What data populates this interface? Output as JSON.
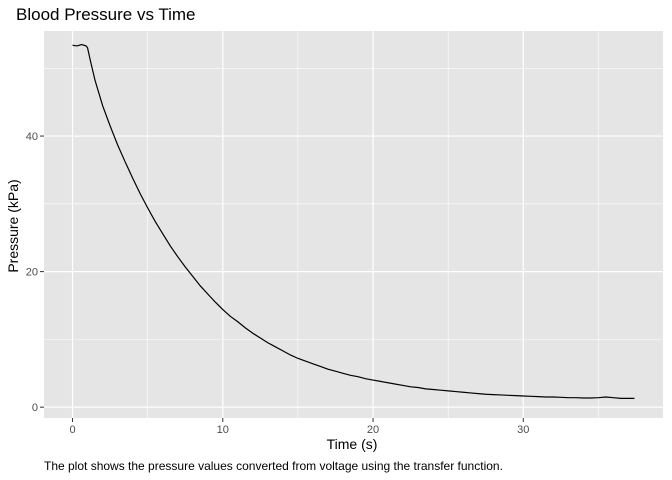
{
  "chart_data": {
    "type": "line",
    "title": "Blood Pressure vs Time",
    "xlabel": "Time (s)",
    "ylabel": "Pressure (kPa)",
    "caption": "The plot shows the pressure values converted from voltage using the transfer function.",
    "xlim": [
      -1.9,
      39.3
    ],
    "ylim": [
      -1.6,
      55.5
    ],
    "x_ticks": [
      0,
      10,
      20,
      30
    ],
    "x_tick_labels": [
      "0",
      "10",
      "20",
      "30"
    ],
    "y_ticks": [
      0,
      20,
      40
    ],
    "y_tick_labels": [
      "0",
      "20",
      "40"
    ],
    "grid": true,
    "panel_background": "#e5e5e5",
    "grid_color": "#ffffff",
    "line_color": "#000000",
    "series": [
      {
        "x": [
          0.0,
          0.3,
          0.6,
          0.9,
          1.0,
          1.2,
          1.5,
          2.0,
          2.5,
          3.0,
          3.5,
          4.0,
          4.5,
          5.0,
          5.5,
          6.0,
          6.5,
          7.0,
          7.5,
          8.0,
          8.5,
          9.0,
          9.5,
          10.0,
          10.5,
          11.0,
          11.5,
          12.0,
          12.5,
          13.0,
          13.5,
          14.0,
          14.5,
          15.0,
          15.5,
          16.0,
          16.5,
          17.0,
          17.5,
          18.0,
          18.5,
          19.0,
          19.5,
          20.0,
          20.5,
          21.0,
          21.5,
          22.0,
          22.5,
          23.0,
          23.5,
          24.0,
          24.5,
          25.0,
          25.5,
          26.0,
          26.5,
          27.0,
          27.5,
          28.0,
          28.5,
          29.0,
          29.5,
          30.0,
          30.5,
          31.0,
          31.5,
          32.0,
          32.5,
          33.0,
          33.5,
          34.0,
          34.5,
          35.0,
          35.5,
          36.0,
          36.5,
          37.0,
          37.4
        ],
        "y": [
          53.4,
          53.3,
          53.5,
          53.3,
          53.0,
          51.0,
          48.2,
          44.5,
          41.5,
          38.7,
          36.2,
          33.8,
          31.5,
          29.4,
          27.4,
          25.6,
          23.8,
          22.2,
          20.7,
          19.3,
          17.9,
          16.7,
          15.5,
          14.4,
          13.4,
          12.6,
          11.7,
          10.9,
          10.2,
          9.5,
          8.9,
          8.3,
          7.7,
          7.2,
          6.8,
          6.4,
          6.0,
          5.6,
          5.3,
          5.0,
          4.7,
          4.5,
          4.2,
          4.0,
          3.8,
          3.6,
          3.4,
          3.2,
          3.0,
          2.9,
          2.7,
          2.6,
          2.5,
          2.4,
          2.3,
          2.2,
          2.1,
          2.0,
          1.9,
          1.85,
          1.8,
          1.75,
          1.7,
          1.65,
          1.6,
          1.55,
          1.5,
          1.5,
          1.45,
          1.4,
          1.4,
          1.35,
          1.35,
          1.4,
          1.5,
          1.4,
          1.3,
          1.3,
          1.3
        ]
      }
    ]
  }
}
